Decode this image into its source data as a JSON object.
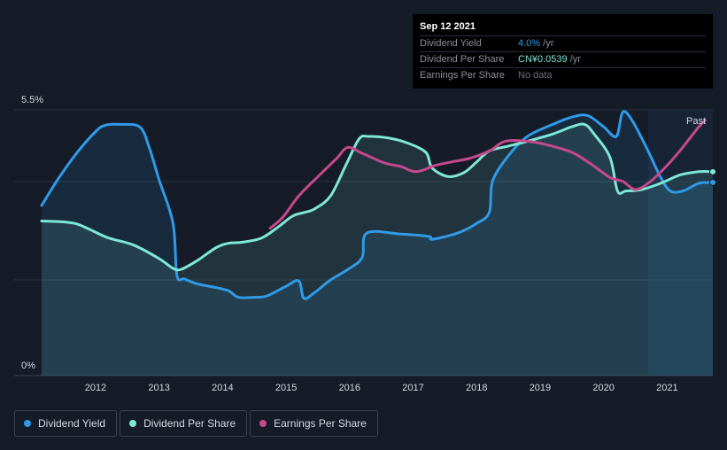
{
  "tooltip": {
    "date": "Sep 12 2021",
    "rows": [
      {
        "label": "Dividend Yield",
        "value": "4.0%",
        "unit": " /yr",
        "color": "#2f9be8"
      },
      {
        "label": "Dividend Per Share",
        "value": "CN¥0.0539",
        "unit": " /yr",
        "color": "#7de8d8"
      },
      {
        "label": "Earnings Per Share",
        "value": "No data",
        "unit": "",
        "color": "#6b707a"
      }
    ]
  },
  "past_label": "Past",
  "legend": [
    {
      "label": "Dividend Yield",
      "color": "#2f9be8"
    },
    {
      "label": "Dividend Per Share",
      "color": "#7de8d8"
    },
    {
      "label": "Earnings Per Share",
      "color": "#c6488d"
    }
  ],
  "chart_data": {
    "type": "line",
    "title": "",
    "xlabel": "",
    "ylabel": "",
    "ylim": [
      0,
      5.5
    ],
    "y_tick_labels": [
      "5.5%",
      "0%"
    ],
    "xlim": [
      2011.15,
      2021.72
    ],
    "x_ticks": [
      2012,
      2013,
      2014,
      2015,
      2016,
      2017,
      2018,
      2019,
      2020,
      2021
    ],
    "grid": true,
    "legend_position": "bottom-left",
    "past_region_start": 2020.7,
    "series": [
      {
        "name": "Dividend Yield",
        "color": "#2f9be8",
        "filled": true,
        "points": [
          [
            2011.15,
            3.52
          ],
          [
            2011.4,
            4.05
          ],
          [
            2011.7,
            4.6
          ],
          [
            2012.0,
            5.05
          ],
          [
            2012.15,
            5.18
          ],
          [
            2012.4,
            5.2
          ],
          [
            2012.7,
            5.14
          ],
          [
            2012.85,
            4.7
          ],
          [
            2013.0,
            4.05
          ],
          [
            2013.22,
            3.15
          ],
          [
            2013.28,
            2.08
          ],
          [
            2013.4,
            2.0
          ],
          [
            2013.6,
            1.9
          ],
          [
            2013.9,
            1.82
          ],
          [
            2014.1,
            1.75
          ],
          [
            2014.25,
            1.62
          ],
          [
            2014.5,
            1.62
          ],
          [
            2014.7,
            1.65
          ],
          [
            2015.0,
            1.85
          ],
          [
            2015.2,
            1.96
          ],
          [
            2015.28,
            1.6
          ],
          [
            2015.45,
            1.72
          ],
          [
            2015.7,
            1.98
          ],
          [
            2016.0,
            2.22
          ],
          [
            2016.2,
            2.45
          ],
          [
            2016.27,
            2.95
          ],
          [
            2016.8,
            2.93
          ],
          [
            2017.25,
            2.88
          ],
          [
            2017.3,
            2.82
          ],
          [
            2017.7,
            2.95
          ],
          [
            2018.0,
            3.15
          ],
          [
            2018.2,
            3.38
          ],
          [
            2018.25,
            4.02
          ],
          [
            2018.5,
            4.55
          ],
          [
            2018.8,
            4.95
          ],
          [
            2019.2,
            5.2
          ],
          [
            2019.5,
            5.35
          ],
          [
            2019.75,
            5.38
          ],
          [
            2020.0,
            5.15
          ],
          [
            2020.2,
            4.95
          ],
          [
            2020.3,
            5.45
          ],
          [
            2020.45,
            5.28
          ],
          [
            2020.7,
            4.65
          ],
          [
            2020.9,
            4.1
          ],
          [
            2021.05,
            3.82
          ],
          [
            2021.25,
            3.82
          ],
          [
            2021.5,
            3.98
          ],
          [
            2021.72,
            4.0
          ]
        ]
      },
      {
        "name": "Dividend Per Share",
        "color": "#7de8d8",
        "filled": true,
        "points": [
          [
            2011.15,
            3.2
          ],
          [
            2011.5,
            3.18
          ],
          [
            2011.7,
            3.14
          ],
          [
            2011.9,
            3.03
          ],
          [
            2012.2,
            2.85
          ],
          [
            2012.6,
            2.7
          ],
          [
            2013.0,
            2.42
          ],
          [
            2013.22,
            2.22
          ],
          [
            2013.35,
            2.2
          ],
          [
            2013.6,
            2.38
          ],
          [
            2013.9,
            2.65
          ],
          [
            2014.1,
            2.74
          ],
          [
            2014.3,
            2.76
          ],
          [
            2014.6,
            2.84
          ],
          [
            2014.85,
            3.05
          ],
          [
            2015.1,
            3.3
          ],
          [
            2015.3,
            3.38
          ],
          [
            2015.45,
            3.45
          ],
          [
            2015.7,
            3.72
          ],
          [
            2015.95,
            4.38
          ],
          [
            2016.15,
            4.9
          ],
          [
            2016.3,
            4.95
          ],
          [
            2016.6,
            4.92
          ],
          [
            2016.9,
            4.82
          ],
          [
            2017.2,
            4.62
          ],
          [
            2017.3,
            4.3
          ],
          [
            2017.55,
            4.12
          ],
          [
            2017.8,
            4.2
          ],
          [
            2018.0,
            4.42
          ],
          [
            2018.2,
            4.65
          ],
          [
            2018.5,
            4.75
          ],
          [
            2018.8,
            4.85
          ],
          [
            2019.2,
            5.0
          ],
          [
            2019.5,
            5.15
          ],
          [
            2019.7,
            5.2
          ],
          [
            2019.85,
            5.0
          ],
          [
            2020.1,
            4.52
          ],
          [
            2020.22,
            3.82
          ],
          [
            2020.35,
            3.82
          ],
          [
            2020.6,
            3.85
          ],
          [
            2020.9,
            3.98
          ],
          [
            2021.2,
            4.15
          ],
          [
            2021.5,
            4.22
          ],
          [
            2021.72,
            4.22
          ]
        ]
      },
      {
        "name": "Earnings Per Share",
        "color": "#c6488d",
        "filled": false,
        "points": [
          [
            2014.75,
            3.05
          ],
          [
            2014.95,
            3.28
          ],
          [
            2015.2,
            3.72
          ],
          [
            2015.55,
            4.18
          ],
          [
            2015.8,
            4.5
          ],
          [
            2015.97,
            4.72
          ],
          [
            2016.2,
            4.6
          ],
          [
            2016.55,
            4.4
          ],
          [
            2016.8,
            4.33
          ],
          [
            2017.05,
            4.22
          ],
          [
            2017.35,
            4.35
          ],
          [
            2017.6,
            4.42
          ],
          [
            2017.9,
            4.5
          ],
          [
            2018.2,
            4.65
          ],
          [
            2018.45,
            4.85
          ],
          [
            2018.8,
            4.85
          ],
          [
            2019.1,
            4.78
          ],
          [
            2019.5,
            4.62
          ],
          [
            2019.8,
            4.38
          ],
          [
            2020.1,
            4.1
          ],
          [
            2020.3,
            4.02
          ],
          [
            2020.5,
            3.85
          ],
          [
            2020.72,
            4.0
          ],
          [
            2020.95,
            4.28
          ],
          [
            2021.2,
            4.65
          ],
          [
            2021.5,
            5.15
          ],
          [
            2021.6,
            5.28
          ]
        ]
      }
    ]
  }
}
